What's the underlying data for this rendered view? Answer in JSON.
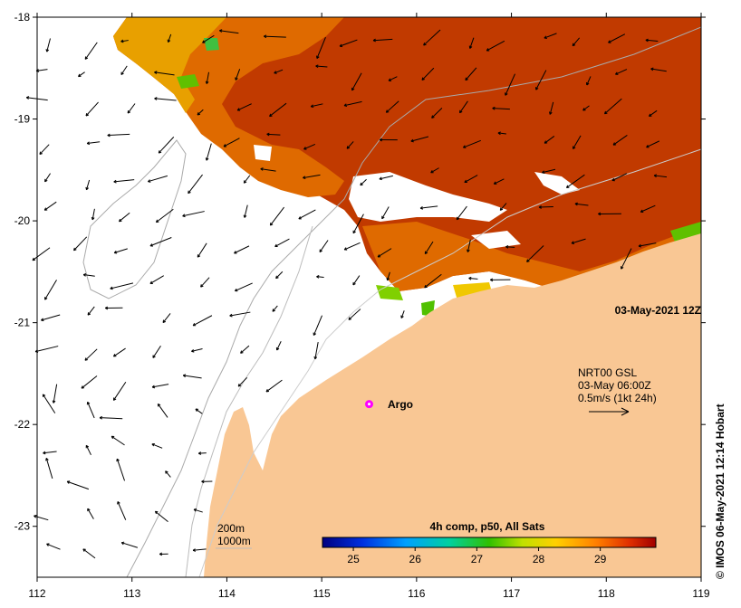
{
  "map": {
    "lon_ticks": [
      "112",
      "113",
      "114",
      "115",
      "116",
      "117",
      "118",
      "119"
    ],
    "lat_ticks": [
      "-18",
      "-19",
      "-20",
      "-21",
      "-22",
      "-23"
    ],
    "lon_range": [
      112,
      119
    ],
    "lat_range": [
      -23.5,
      -18
    ],
    "date_label": "03-May-2021 12Z",
    "argo_label": "Argo",
    "argo_position": {
      "lon": 115.5,
      "lat": -21.8
    },
    "current_legend": {
      "line1": "NRT00 GSL",
      "line2": "03-May 06:00Z",
      "line3": "0.5m/s (1kt 24h)"
    },
    "depth_legend": [
      "200m",
      "1000m"
    ],
    "colorbar": {
      "title": "4h comp, p50, All Sats",
      "ticks": [
        "25",
        "26",
        "27",
        "28",
        "29"
      ],
      "tick_values": [
        25,
        26,
        27,
        28,
        29
      ],
      "range": [
        24.5,
        29.9
      ]
    },
    "credit": "© IMOS 06-May-2021 12:14 Hobart",
    "colors": {
      "land": "#f9c794",
      "sst_warm": "#c13a00",
      "sst_mid": "#e07000",
      "sst_cool": "#e9a200",
      "argo": "#ff00ff"
    }
  }
}
